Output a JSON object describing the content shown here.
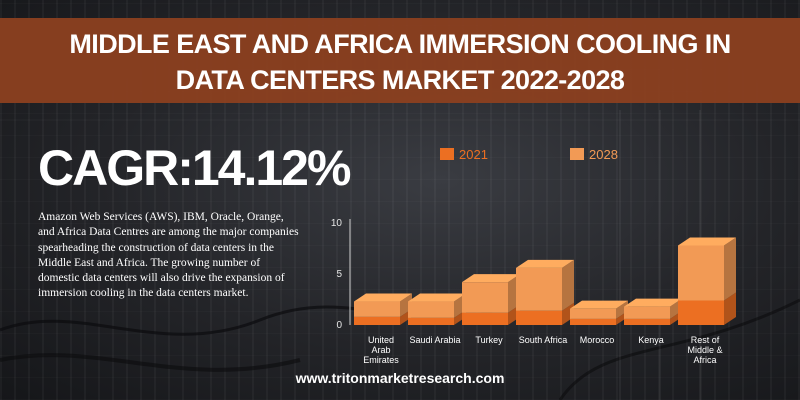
{
  "header": {
    "title_line1": "MIDDLE EAST AND AFRICA IMMERSION COOLING IN",
    "title_line2": "DATA CENTERS MARKET 2022-2028"
  },
  "cagr": "CAGR:14.12%",
  "description": "Amazon Web Services (AWS), IBM, Oracle, Orange, and Africa Data Centres are among the major companies spearheading the construction of data centers in the Middle East and Africa. The growing number of domestic data centers will also drive the expansion of immersion cooling in the data centers market.",
  "footer": "www.tritonmarketresearch.com",
  "colors": {
    "banner": "#8a3f1f",
    "series_2021": "#ec6f22",
    "series_2028": "#f29a55"
  },
  "chart_data": {
    "type": "bar",
    "stacked": true,
    "three_d": true,
    "categories": [
      [
        "United",
        "Arab",
        "Emirates"
      ],
      [
        "Saudi Arabia"
      ],
      [
        "Turkey"
      ],
      [
        "South Africa"
      ],
      [
        "Morocco"
      ],
      [
        "Kenya"
      ],
      [
        "Rest of",
        "Middle &",
        "Africa"
      ]
    ],
    "series": [
      {
        "name": "2021",
        "values": [
          0.8,
          0.7,
          1.2,
          1.4,
          0.6,
          0.6,
          2.4
        ]
      },
      {
        "name": "2028",
        "values": [
          1.5,
          1.6,
          3.0,
          4.2,
          1.0,
          1.2,
          5.4
        ]
      }
    ],
    "ylim": [
      0,
      10
    ],
    "yticks": [
      "0",
      "5",
      "10"
    ],
    "grid": false,
    "legend": "top"
  }
}
